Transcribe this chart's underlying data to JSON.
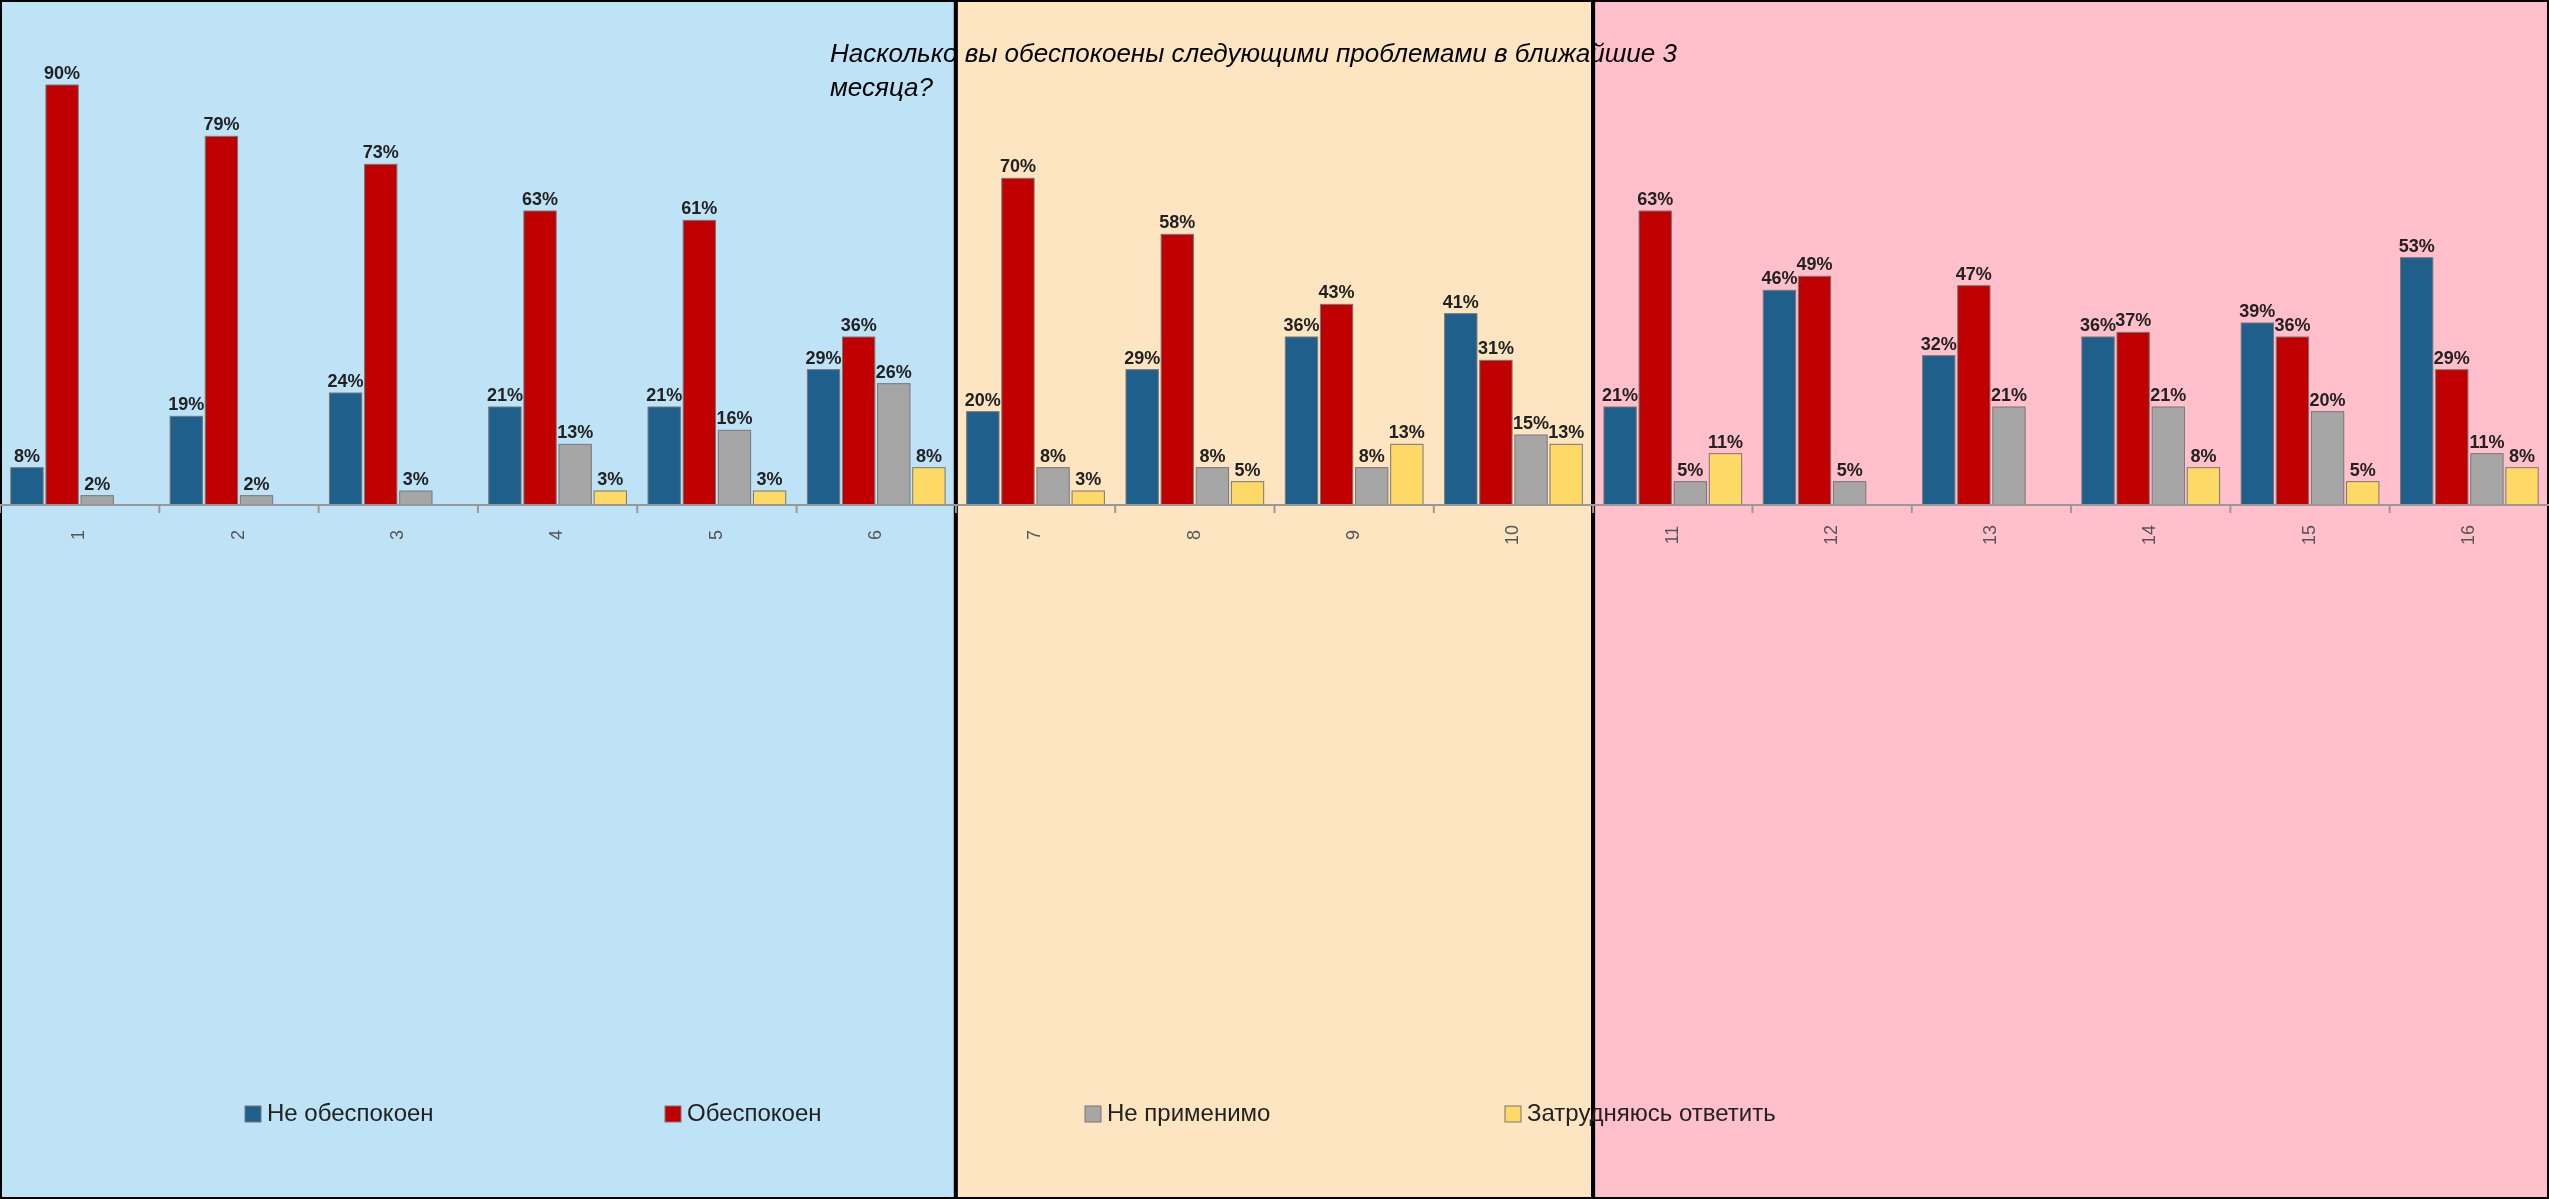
{
  "chart_data": {
    "type": "bar",
    "title": "Насколько вы обеспокоены следующими проблемами в ближайшие 3 месяца?",
    "categories": [
      "1",
      "2",
      "3",
      "4",
      "5",
      "6",
      "7",
      "8",
      "9",
      "10",
      "11",
      "12",
      "13",
      "14",
      "15",
      "16"
    ],
    "series": [
      {
        "name": "Не обеспокоен",
        "color": "#1f5f8b",
        "values": [
          8,
          19,
          24,
          21,
          21,
          29,
          20,
          29,
          36,
          41,
          21,
          46,
          32,
          36,
          39,
          53
        ],
        "value_labels": [
          "8%",
          "19%",
          "24%",
          "21%",
          "21%",
          "29%",
          "20%",
          "29%",
          "36%",
          "41%",
          "21%",
          "46%",
          "32%",
          "36%",
          "39%",
          "53%"
        ]
      },
      {
        "name": "Обеспокоен",
        "color": "#c00000",
        "values": [
          90,
          79,
          73,
          63,
          61,
          36,
          70,
          58,
          43,
          31,
          63,
          49,
          47,
          37,
          36,
          29
        ],
        "value_labels": [
          "90%",
          "79%",
          "73%",
          "63%",
          "61%",
          "36%",
          "70%",
          "58%",
          "43%",
          "31%",
          "63%",
          "49%",
          "47%",
          "37%",
          "36%",
          "29%"
        ]
      },
      {
        "name": "Не применимо",
        "color": "#a6a6a6",
        "values": [
          2,
          2,
          3,
          13,
          16,
          26,
          8,
          8,
          8,
          15,
          5,
          5,
          21,
          21,
          20,
          11
        ],
        "value_labels": [
          "2%",
          "2%",
          "3%",
          "13%",
          "16%",
          "26%",
          "8%",
          "8%",
          "8%",
          "15%",
          "5%",
          "5%",
          "21%",
          "21%",
          "20%",
          "11%"
        ]
      },
      {
        "name": "Затрудняюсь ответить",
        "color": "#ffd966",
        "values": [
          null,
          null,
          null,
          3,
          3,
          8,
          3,
          5,
          13,
          13,
          11,
          null,
          null,
          8,
          5,
          8
        ],
        "value_labels": [
          null,
          null,
          null,
          "3%",
          "3%",
          "8%",
          "3%",
          "5%",
          "13%",
          "13%",
          "11%",
          null,
          null,
          "8%",
          "5%",
          "8%"
        ]
      }
    ],
    "bands": [
      {
        "axis": "x",
        "from": "1",
        "to": "6",
        "color": "#bee3f6"
      },
      {
        "axis": "x",
        "from": "7",
        "to": "10",
        "color": "#fee5c2"
      },
      {
        "axis": "x",
        "from": "11",
        "to": "16",
        "color": "#ffbfcb"
      }
    ],
    "legend": "bottom",
    "grid": false
  }
}
